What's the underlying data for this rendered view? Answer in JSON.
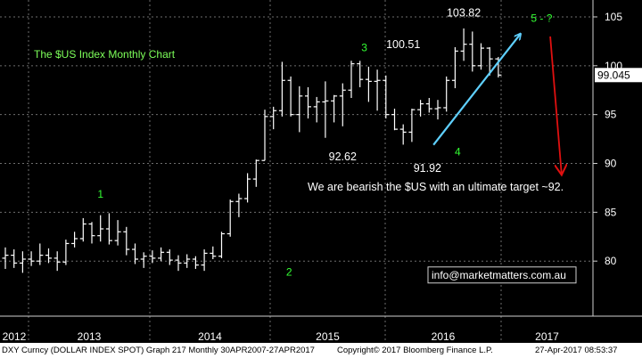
{
  "colors": {
    "background": "#000000",
    "bars": "#ffffff",
    "grid": "#6e6e6e",
    "wave_label": "#33ff33",
    "title_text": "#7dff5a",
    "arrow_up": "#5fd0ff",
    "arrow_down": "#e01010",
    "last_price_box": "#ffffff"
  },
  "footer": {
    "left": "DXY Curncy (DOLLAR INDEX SPOT) Graph 217  Monthly 30APR2007-27APR2017",
    "center": "Copyright© 2017 Bloomberg Finance L.P.",
    "right": "27-Apr-2017 08:53:37"
  },
  "chart_data": {
    "type": "ohlc",
    "title": "The $US Index Monthly Chart",
    "ylim": [
      74,
      106
    ],
    "yticks": [
      80,
      85,
      90,
      95,
      100,
      105
    ],
    "x_labels": [
      "2012",
      "2013",
      "2014",
      "2015",
      "2016",
      "2017"
    ],
    "last_price": "99.045",
    "grid": true,
    "annotations": {
      "waves": [
        {
          "label": "1",
          "value": 86.5
        },
        {
          "label": "2",
          "value": 78.5
        },
        {
          "label": "3",
          "value": 101.5
        },
        {
          "label": "4",
          "value": 90.8
        },
        {
          "label": "5 - ?",
          "value": 104.5
        }
      ],
      "price_labels": [
        {
          "text": "103.82",
          "value": 103.82
        },
        {
          "text": "100.51",
          "value": 100.51
        },
        {
          "text": "92.62",
          "value": 92.62
        },
        {
          "text": "91.92",
          "value": 91.92
        }
      ],
      "note": "We are bearish the $US with an ultimate target ~92.",
      "contact": "info@marketmatters.com.au"
    },
    "series": [
      {
        "bars": [
          {
            "o": 80.3,
            "h": 81.4,
            "l": 79.2,
            "c": 80.6
          },
          {
            "o": 80.6,
            "h": 81.2,
            "l": 79.3,
            "c": 79.8
          },
          {
            "o": 79.8,
            "h": 81.0,
            "l": 78.8,
            "c": 80.2
          },
          {
            "o": 80.2,
            "h": 81.0,
            "l": 79.5,
            "c": 80.0
          },
          {
            "o": 80.0,
            "h": 81.8,
            "l": 79.6,
            "c": 80.6
          },
          {
            "o": 80.6,
            "h": 81.3,
            "l": 79.8,
            "c": 80.3
          },
          {
            "o": 80.3,
            "h": 81.0,
            "l": 79.0,
            "c": 79.9
          },
          {
            "o": 79.9,
            "h": 82.2,
            "l": 79.6,
            "c": 81.8
          },
          {
            "o": 81.8,
            "h": 83.0,
            "l": 81.4,
            "c": 82.3
          },
          {
            "o": 82.3,
            "h": 84.4,
            "l": 82.0,
            "c": 83.8
          },
          {
            "o": 83.8,
            "h": 84.0,
            "l": 81.8,
            "c": 82.6
          },
          {
            "o": 82.6,
            "h": 84.7,
            "l": 82.0,
            "c": 83.3
          },
          {
            "o": 83.3,
            "h": 84.9,
            "l": 81.7,
            "c": 82.1
          },
          {
            "o": 82.1,
            "h": 84.2,
            "l": 81.6,
            "c": 83.0
          },
          {
            "o": 83.0,
            "h": 83.5,
            "l": 80.6,
            "c": 81.2
          },
          {
            "o": 81.2,
            "h": 81.8,
            "l": 79.7,
            "c": 80.2
          },
          {
            "o": 80.2,
            "h": 80.9,
            "l": 79.3,
            "c": 80.5
          },
          {
            "o": 80.5,
            "h": 81.1,
            "l": 79.8,
            "c": 80.3
          },
          {
            "o": 80.3,
            "h": 81.4,
            "l": 80.0,
            "c": 80.9
          },
          {
            "o": 80.9,
            "h": 81.2,
            "l": 79.6,
            "c": 80.1
          },
          {
            "o": 80.1,
            "h": 80.6,
            "l": 79.0,
            "c": 79.8
          },
          {
            "o": 79.8,
            "h": 80.7,
            "l": 79.3,
            "c": 80.2
          },
          {
            "o": 80.2,
            "h": 80.5,
            "l": 79.2,
            "c": 79.6
          },
          {
            "o": 79.6,
            "h": 81.2,
            "l": 79.0,
            "c": 80.8
          },
          {
            "o": 80.8,
            "h": 81.5,
            "l": 80.2,
            "c": 80.5
          },
          {
            "o": 80.5,
            "h": 83.0,
            "l": 80.3,
            "c": 82.8
          },
          {
            "o": 82.8,
            "h": 86.3,
            "l": 82.5,
            "c": 86.1
          },
          {
            "o": 86.1,
            "h": 86.9,
            "l": 84.5,
            "c": 86.4
          },
          {
            "o": 86.4,
            "h": 89.0,
            "l": 86.0,
            "c": 88.4
          },
          {
            "o": 88.4,
            "h": 90.4,
            "l": 87.6,
            "c": 90.3
          },
          {
            "o": 90.3,
            "h": 95.5,
            "l": 90.3,
            "c": 94.8
          },
          {
            "o": 94.8,
            "h": 95.8,
            "l": 93.5,
            "c": 95.4
          },
          {
            "o": 95.4,
            "h": 100.4,
            "l": 94.8,
            "c": 98.5
          },
          {
            "o": 98.5,
            "h": 98.9,
            "l": 94.8,
            "c": 95.0
          },
          {
            "o": 95.0,
            "h": 97.9,
            "l": 93.2,
            "c": 96.9
          },
          {
            "o": 96.9,
            "h": 97.8,
            "l": 94.6,
            "c": 95.8
          },
          {
            "o": 95.8,
            "h": 96.8,
            "l": 94.2,
            "c": 96.3
          },
          {
            "o": 96.3,
            "h": 98.4,
            "l": 92.62,
            "c": 96.4
          },
          {
            "o": 96.4,
            "h": 97.0,
            "l": 94.2,
            "c": 96.9
          },
          {
            "o": 96.9,
            "h": 98.2,
            "l": 93.8,
            "c": 97.5
          },
          {
            "o": 97.5,
            "h": 100.51,
            "l": 96.7,
            "c": 100.2
          },
          {
            "o": 100.2,
            "h": 100.5,
            "l": 97.8,
            "c": 98.6
          },
          {
            "o": 98.6,
            "h": 99.9,
            "l": 96.3,
            "c": 98.4
          },
          {
            "o": 98.4,
            "h": 99.6,
            "l": 95.4,
            "c": 98.5
          },
          {
            "o": 98.5,
            "h": 99.0,
            "l": 94.6,
            "c": 95.0
          },
          {
            "o": 95.0,
            "h": 95.6,
            "l": 93.4,
            "c": 93.5
          },
          {
            "o": 93.5,
            "h": 94.0,
            "l": 91.92,
            "c": 93.2
          },
          {
            "o": 93.2,
            "h": 95.6,
            "l": 92.2,
            "c": 95.5
          },
          {
            "o": 95.5,
            "h": 96.5,
            "l": 94.8,
            "c": 96.1
          },
          {
            "o": 96.1,
            "h": 96.7,
            "l": 95.2,
            "c": 95.6
          },
          {
            "o": 95.6,
            "h": 96.5,
            "l": 94.5,
            "c": 95.7
          },
          {
            "o": 95.7,
            "h": 98.9,
            "l": 95.3,
            "c": 98.5
          },
          {
            "o": 98.5,
            "h": 101.9,
            "l": 97.7,
            "c": 101.5
          },
          {
            "o": 101.5,
            "h": 103.82,
            "l": 100.5,
            "c": 102.2
          },
          {
            "o": 102.2,
            "h": 103.5,
            "l": 99.4,
            "c": 100.0
          },
          {
            "o": 100.0,
            "h": 102.3,
            "l": 99.6,
            "c": 101.8
          },
          {
            "o": 101.8,
            "h": 101.9,
            "l": 99.0,
            "c": 100.7
          },
          {
            "o": 100.7,
            "h": 100.9,
            "l": 98.8,
            "c": 99.045
          }
        ]
      }
    ]
  }
}
